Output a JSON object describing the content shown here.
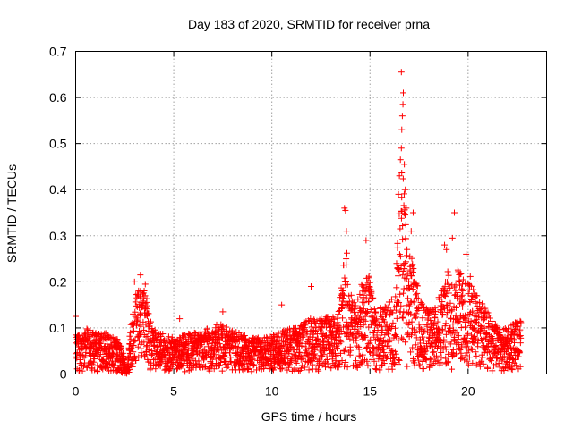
{
  "chart_data": {
    "type": "scatter",
    "title": "Day 183 of 2020, SRMTID for receiver prna",
    "xlabel": "GPS time / hours",
    "ylabel": "SRMTID / TECUs",
    "xlim": [
      0,
      24
    ],
    "ylim": [
      0,
      0.7
    ],
    "xticks": [
      0,
      5,
      10,
      15,
      20
    ],
    "yticks": [
      0,
      0.1,
      0.2,
      0.3,
      0.4,
      0.5,
      0.6,
      0.7
    ],
    "xtick_labels": [
      "0",
      "5",
      "10",
      "15",
      "20"
    ],
    "ytick_labels": [
      "0",
      "0.1",
      "0.2",
      "0.3",
      "0.4",
      "0.5",
      "0.6",
      "0.7"
    ],
    "grid": true,
    "marker": "+",
    "series": [
      {
        "name": "SRMTID",
        "color": "#ff0000",
        "envelope": [
          [
            0.0,
            0.09
          ],
          [
            0.3,
            0.08
          ],
          [
            0.6,
            0.1
          ],
          [
            1.0,
            0.09
          ],
          [
            1.5,
            0.09
          ],
          [
            2.0,
            0.08
          ],
          [
            2.3,
            0.07
          ],
          [
            2.6,
            0.005
          ],
          [
            2.9,
            0.15
          ],
          [
            3.1,
            0.18
          ],
          [
            3.3,
            0.2
          ],
          [
            3.6,
            0.17
          ],
          [
            3.9,
            0.1
          ],
          [
            4.3,
            0.09
          ],
          [
            4.8,
            0.08
          ],
          [
            5.2,
            0.08
          ],
          [
            5.8,
            0.09
          ],
          [
            6.3,
            0.09
          ],
          [
            6.8,
            0.1
          ],
          [
            7.3,
            0.11
          ],
          [
            7.8,
            0.1
          ],
          [
            8.3,
            0.09
          ],
          [
            8.8,
            0.08
          ],
          [
            9.3,
            0.08
          ],
          [
            9.8,
            0.08
          ],
          [
            10.3,
            0.09
          ],
          [
            10.8,
            0.1
          ],
          [
            11.3,
            0.1
          ],
          [
            11.8,
            0.12
          ],
          [
            12.3,
            0.12
          ],
          [
            12.8,
            0.13
          ],
          [
            13.3,
            0.12
          ],
          [
            13.6,
            0.22
          ],
          [
            13.8,
            0.28
          ],
          [
            14.0,
            0.18
          ],
          [
            14.3,
            0.15
          ],
          [
            14.6,
            0.2
          ],
          [
            14.9,
            0.23
          ],
          [
            15.2,
            0.16
          ],
          [
            15.6,
            0.14
          ],
          [
            16.0,
            0.16
          ],
          [
            16.3,
            0.18
          ],
          [
            16.5,
            0.4
          ],
          [
            16.6,
            0.52
          ],
          [
            16.7,
            0.45
          ],
          [
            16.9,
            0.26
          ],
          [
            17.1,
            0.26
          ],
          [
            17.3,
            0.22
          ],
          [
            17.6,
            0.16
          ],
          [
            18.0,
            0.14
          ],
          [
            18.4,
            0.15
          ],
          [
            18.7,
            0.2
          ],
          [
            18.9,
            0.23
          ],
          [
            19.2,
            0.2
          ],
          [
            19.5,
            0.24
          ],
          [
            19.8,
            0.2
          ],
          [
            20.1,
            0.22
          ],
          [
            20.4,
            0.18
          ],
          [
            20.8,
            0.15
          ],
          [
            21.2,
            0.12
          ],
          [
            21.6,
            0.1
          ],
          [
            22.0,
            0.1
          ],
          [
            22.3,
            0.11
          ],
          [
            22.7,
            0.12
          ]
        ],
        "highlights": [
          {
            "x": 0.0,
            "y": 0.125
          },
          {
            "x": 3.0,
            "y": 0.2
          },
          {
            "x": 3.3,
            "y": 0.215
          },
          {
            "x": 3.55,
            "y": 0.195
          },
          {
            "x": 13.7,
            "y": 0.36
          },
          {
            "x": 13.75,
            "y": 0.355
          },
          {
            "x": 13.8,
            "y": 0.31
          },
          {
            "x": 14.8,
            "y": 0.29
          },
          {
            "x": 16.45,
            "y": 0.39
          },
          {
            "x": 16.5,
            "y": 0.43
          },
          {
            "x": 16.55,
            "y": 0.465
          },
          {
            "x": 16.6,
            "y": 0.49
          },
          {
            "x": 16.62,
            "y": 0.53
          },
          {
            "x": 16.65,
            "y": 0.56
          },
          {
            "x": 16.68,
            "y": 0.585
          },
          {
            "x": 16.7,
            "y": 0.61
          },
          {
            "x": 16.6,
            "y": 0.655
          },
          {
            "x": 16.75,
            "y": 0.455
          },
          {
            "x": 16.8,
            "y": 0.4
          },
          {
            "x": 16.85,
            "y": 0.36
          },
          {
            "x": 17.2,
            "y": 0.35
          },
          {
            "x": 17.1,
            "y": 0.31
          },
          {
            "x": 18.8,
            "y": 0.28
          },
          {
            "x": 18.9,
            "y": 0.27
          },
          {
            "x": 19.3,
            "y": 0.35
          },
          {
            "x": 19.2,
            "y": 0.295
          },
          {
            "x": 19.9,
            "y": 0.26
          },
          {
            "x": 12.0,
            "y": 0.19
          },
          {
            "x": 10.5,
            "y": 0.15
          },
          {
            "x": 7.5,
            "y": 0.135
          },
          {
            "x": 5.3,
            "y": 0.12
          }
        ]
      }
    ]
  }
}
